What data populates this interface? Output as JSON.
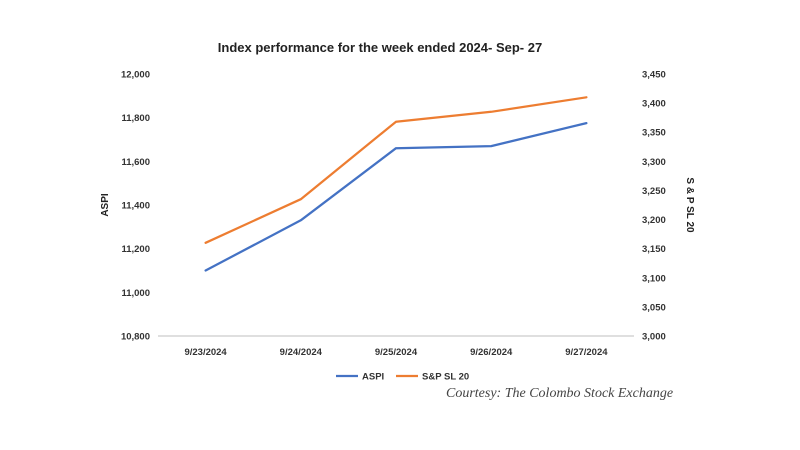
{
  "chart_data": {
    "type": "line",
    "title": "Index performance for the week ended 2024- Sep- 27",
    "categories": [
      "9/23/2024",
      "9/24/2024",
      "9/25/2024",
      "9/26/2024",
      "9/27/2024"
    ],
    "series": [
      {
        "name": "ASPI",
        "axis": "left",
        "color": "#4472C4",
        "values": [
          11100,
          11330,
          11660,
          11670,
          11775
        ]
      },
      {
        "name": "S&P SL 20",
        "axis": "right",
        "color": "#ED7D31",
        "values": [
          3160,
          3235,
          3368,
          3385,
          3410
        ]
      }
    ],
    "ylabel": "ASPI",
    "y2label": "S & P SL 20",
    "ylim": [
      10800,
      12000
    ],
    "y2lim": [
      3000,
      3450
    ],
    "yticks": [
      "10,800",
      "11,000",
      "11,200",
      "11,400",
      "11,600",
      "11,800",
      "12,000"
    ],
    "y2ticks": [
      "3,000",
      "3,050",
      "3,100",
      "3,150",
      "3,200",
      "3,250",
      "3,300",
      "3,350",
      "3,400",
      "3,450"
    ],
    "grid": false,
    "legend": "bottom"
  },
  "caption": "Courtesy: The Colombo Stock Exchange"
}
